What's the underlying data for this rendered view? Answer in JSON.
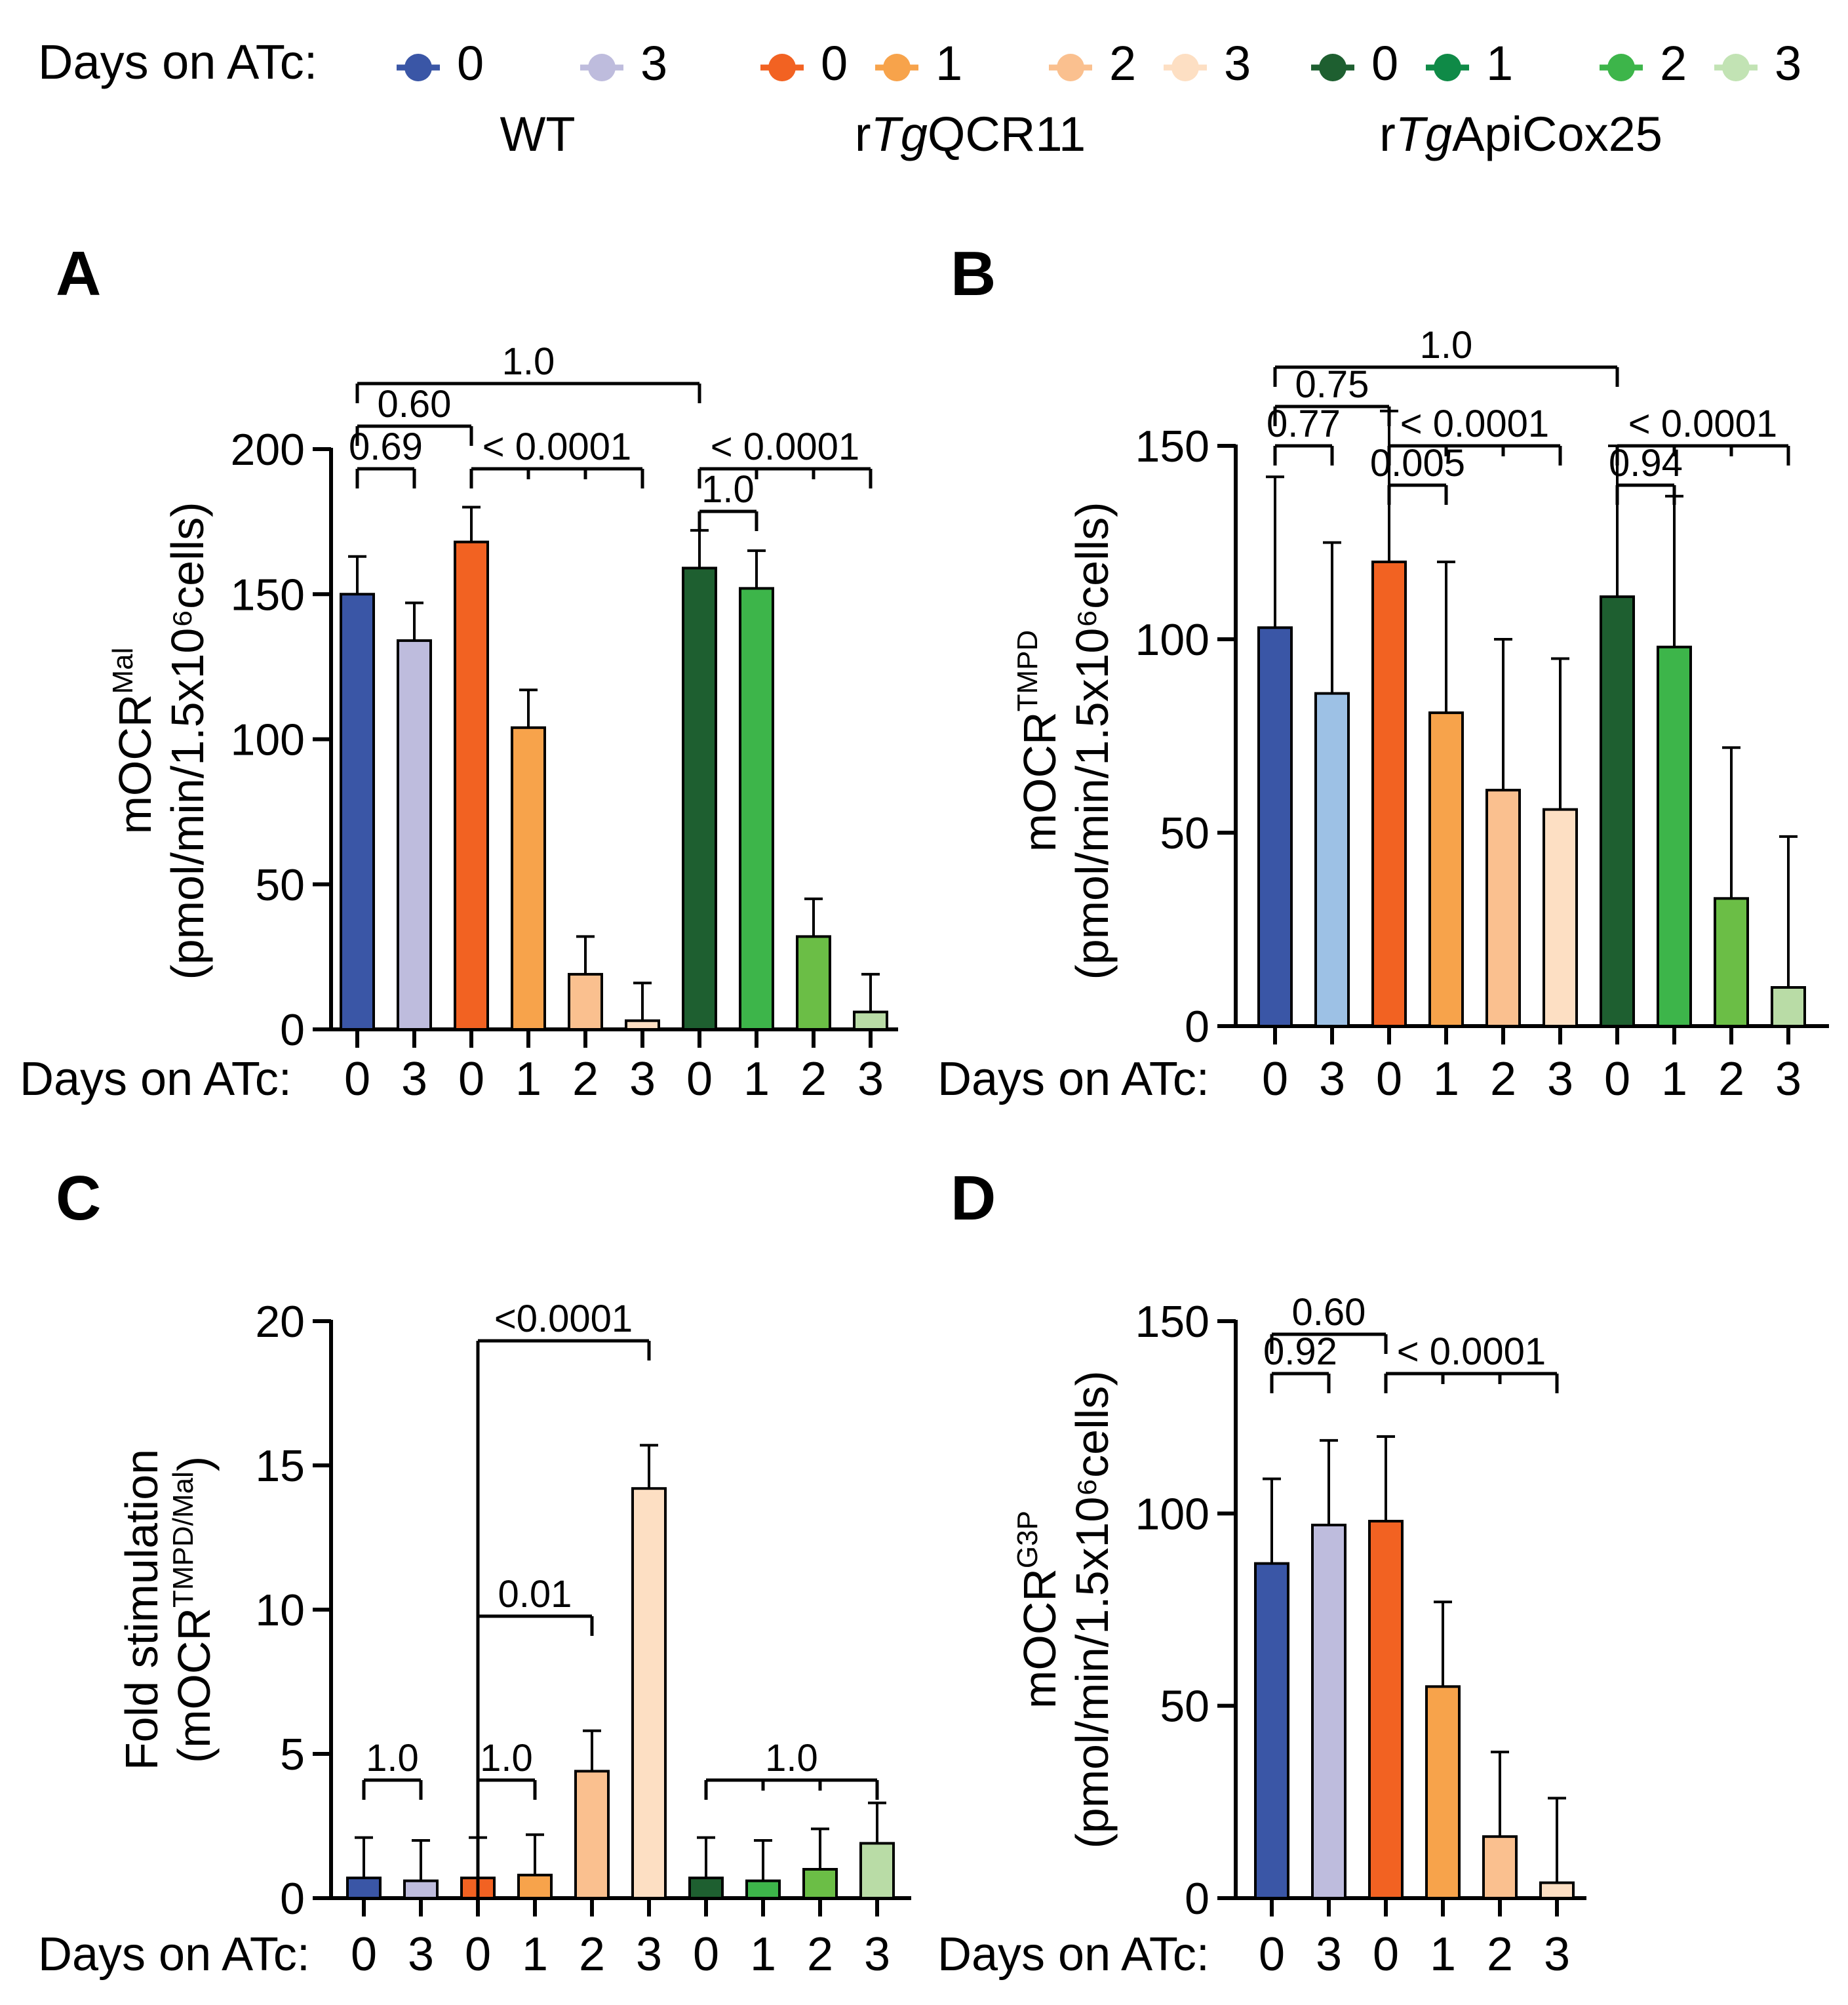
{
  "legend": {
    "prefix": "Days on ATc:",
    "groups": [
      {
        "label_parts": [
          {
            "t": "WT",
            "italic": false
          }
        ],
        "entries": [
          {
            "label": "0",
            "color": "#3A56A6"
          },
          {
            "label": "3",
            "color": "#BEBCDD"
          }
        ]
      },
      {
        "label_parts": [
          {
            "t": "r",
            "italic": false
          },
          {
            "t": "Tg",
            "italic": true
          },
          {
            "t": "QCR11",
            "italic": false
          }
        ],
        "entries": [
          {
            "label": "0",
            "color": "#F26222"
          },
          {
            "label": "1",
            "color": "#F7A34B"
          },
          {
            "label": "2",
            "color": "#FAC08F"
          },
          {
            "label": "3",
            "color": "#FDDFC3"
          }
        ]
      },
      {
        "label_parts": [
          {
            "t": "r",
            "italic": false
          },
          {
            "t": "Tg",
            "italic": true
          },
          {
            "t": "ApiCox25",
            "italic": false
          }
        ],
        "entries": [
          {
            "label": "0",
            "color": "#1E5F30"
          },
          {
            "label": "1",
            "color": "#0F8A47"
          },
          {
            "label": "2",
            "color": "#3DB54A"
          },
          {
            "label": "3",
            "color": "#C2E3B4"
          }
        ]
      }
    ]
  },
  "chart_data": [
    {
      "panel": "A",
      "type": "bar",
      "xprefix": "Days on ATc:",
      "categories": [
        "0",
        "3",
        "0",
        "1",
        "2",
        "3",
        "0",
        "1",
        "2",
        "3"
      ],
      "values": [
        150,
        134,
        168,
        104,
        19,
        3,
        159,
        152,
        32,
        6
      ],
      "errors": [
        13,
        13,
        12,
        13,
        13,
        13,
        13,
        13,
        13,
        13
      ],
      "colors": [
        "#3A56A6",
        "#BEBCDD",
        "#F26222",
        "#F7A34B",
        "#FAC08F",
        "#FDDFC3",
        "#1E5F30",
        "#3DB54A",
        "#6BBE46",
        "#B9DCA6"
      ],
      "ylabel_main": "mOCR",
      "ylabel_sup": "Mal",
      "ylabel_sub": "(pmol/min/1.5x10⁶cells)",
      "ylim": [
        0,
        200
      ],
      "yticks": [
        "0",
        "50",
        "100",
        "150",
        "200"
      ],
      "comparisons": [
        {
          "from": 0,
          "to": [
            6
          ],
          "label": "1.0",
          "level": 3
        },
        {
          "from": 0,
          "to": [
            2
          ],
          "label": "0.60",
          "level": 2
        },
        {
          "from": 0,
          "to": [
            1
          ],
          "label": "0.69",
          "level": 1
        },
        {
          "from": 2,
          "to": [
            3,
            4,
            5
          ],
          "label": "< 0.0001",
          "level": 1
        },
        {
          "from": 6,
          "to": [
            7,
            8,
            9
          ],
          "label": "< 0.0001",
          "level": 1
        },
        {
          "from": 6,
          "to": [
            7
          ],
          "label": "1.0",
          "level": 0
        }
      ]
    },
    {
      "panel": "B",
      "type": "bar",
      "xprefix": "Days on ATc:",
      "categories": [
        "0",
        "3",
        "0",
        "1",
        "2",
        "3",
        "0",
        "1",
        "2",
        "3"
      ],
      "values": [
        103,
        86,
        120,
        81,
        61,
        56,
        111,
        98,
        33,
        10
      ],
      "errors": [
        39,
        39,
        39,
        39,
        39,
        39,
        39,
        39,
        39,
        39
      ],
      "colors": [
        "#3A56A6",
        "#9DC1E5",
        "#F26222",
        "#F7A34B",
        "#FAC08F",
        "#FDDFC3",
        "#1E5F30",
        "#3DB54A",
        "#6BBE46",
        "#B9DCA6"
      ],
      "ylabel_main": "mOCR",
      "ylabel_sup": "TMPD",
      "ylabel_sub": "(pmol/min/1.5x10⁶cells)",
      "ylim": [
        0,
        150
      ],
      "yticks": [
        "0",
        "50",
        "100",
        "150"
      ],
      "comparisons": [
        {
          "from": 0,
          "to": [
            6
          ],
          "label": "1.0",
          "level": 3
        },
        {
          "from": 0,
          "to": [
            2
          ],
          "label": "0.75",
          "level": 2
        },
        {
          "from": 0,
          "to": [
            1
          ],
          "label": "0.77",
          "level": 1
        },
        {
          "from": 2,
          "to": [
            3,
            4,
            5
          ],
          "label": "< 0.0001",
          "level": 1
        },
        {
          "from": 2,
          "to": [
            3
          ],
          "label": "0.005",
          "level": 0
        },
        {
          "from": 6,
          "to": [
            7,
            8,
            9
          ],
          "label": "< 0.0001",
          "level": 1
        },
        {
          "from": 6,
          "to": [
            7
          ],
          "label": "0.94",
          "level": 0
        }
      ]
    },
    {
      "panel": "C",
      "type": "bar",
      "xprefix": "Days on ATc:",
      "categories": [
        "0",
        "3",
        "0",
        "1",
        "2",
        "3",
        "0",
        "1",
        "2",
        "3"
      ],
      "values": [
        0.7,
        0.6,
        0.7,
        0.8,
        4.4,
        14.2,
        0.7,
        0.6,
        1.0,
        1.9
      ],
      "errors": [
        1.4,
        1.4,
        1.4,
        1.4,
        1.4,
        1.5,
        1.4,
        1.4,
        1.4,
        1.4
      ],
      "colors": [
        "#3A56A6",
        "#BEBCDD",
        "#F26222",
        "#F7A34B",
        "#FAC08F",
        "#FDDFC3",
        "#1E5F30",
        "#3DB54A",
        "#6BBE46",
        "#B9DCA6"
      ],
      "ylabel_main": "Fold stimulation",
      "ylabel_sub": "(mOCR",
      "ylabel_sup": "TMPD/Mal",
      "ylabel_close": ")",
      "ylim": [
        0,
        20
      ],
      "yticks": [
        "0",
        "5",
        "10",
        "15",
        "20"
      ],
      "comparisons": [
        {
          "from": 2,
          "to": [
            5
          ],
          "label": "<0.0001",
          "level": 0
        },
        {
          "from": 2,
          "to": [
            4
          ],
          "label": "0.01",
          "level": 0
        },
        {
          "from": 2,
          "to": [
            3
          ],
          "label": "1.0",
          "level": 0
        },
        {
          "from": 0,
          "to": [
            1
          ],
          "label": "1.0",
          "level": 0
        },
        {
          "from": 6,
          "to": [
            7,
            8,
            9
          ],
          "label": "1.0",
          "level": 0
        }
      ]
    },
    {
      "panel": "D",
      "type": "bar",
      "xprefix": "Days on ATc:",
      "categories": [
        "0",
        "3",
        "0",
        "1",
        "2",
        "3"
      ],
      "values": [
        87,
        97,
        98,
        55,
        16,
        4
      ],
      "errors": [
        22,
        22,
        22,
        22,
        22,
        22
      ],
      "colors": [
        "#3A56A6",
        "#BEBCDD",
        "#F26222",
        "#F7A34B",
        "#FAC08F",
        "#FDDFC3"
      ],
      "ylabel_main": "mOCR",
      "ylabel_sup": "G3P",
      "ylabel_sub": "(pmol/min/1.5x10⁶cells)",
      "ylim": [
        0,
        150
      ],
      "yticks": [
        "0",
        "50",
        "100",
        "150"
      ],
      "comparisons": [
        {
          "from": 0,
          "to": [
            2
          ],
          "label": "0.60",
          "level": 2
        },
        {
          "from": 0,
          "to": [
            1
          ],
          "label": "0.92",
          "level": 1
        },
        {
          "from": 2,
          "to": [
            3,
            4,
            5
          ],
          "label": "< 0.0001",
          "level": 1
        }
      ]
    }
  ]
}
